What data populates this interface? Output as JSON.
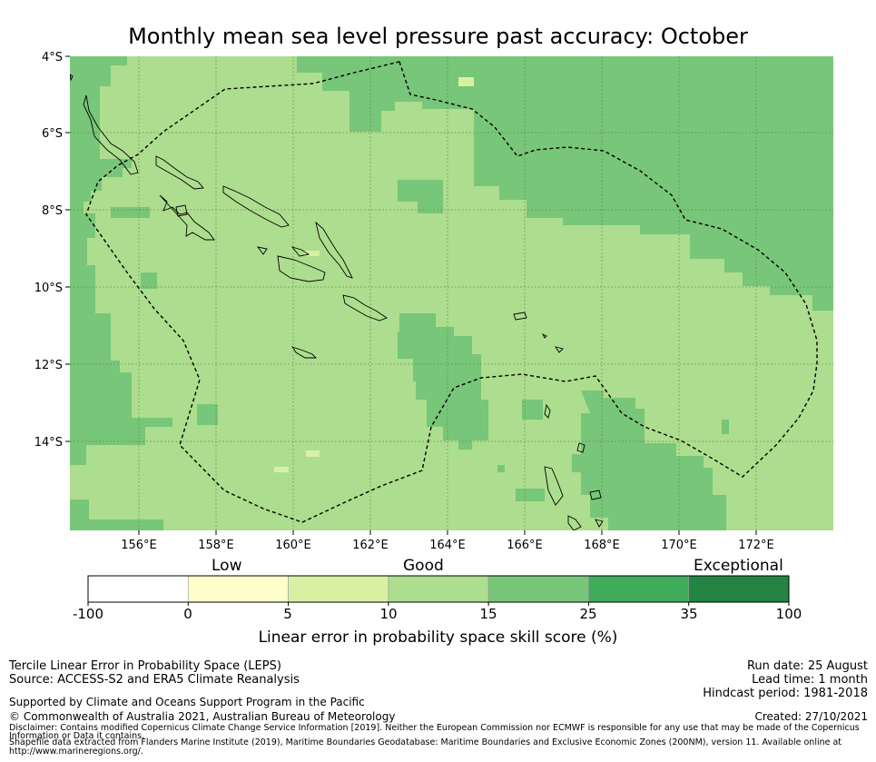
{
  "title": "Monthly mean sea level pressure past accuracy: October",
  "map": {
    "lat_ticks": [
      "4°S",
      "6°S",
      "8°S",
      "10°S",
      "12°S",
      "14°S"
    ],
    "lon_ticks": [
      "156°E",
      "158°E",
      "160°E",
      "162°E",
      "164°E",
      "166°E",
      "168°E",
      "170°E",
      "172°E"
    ],
    "extent": {
      "lon_min": 154.2,
      "lon_max": 174.0,
      "lat_min": -16.3,
      "lat_max": -4.0
    }
  },
  "colorbar": {
    "categories": [
      "Low",
      "Good",
      "Exceptional"
    ],
    "labels": [
      "-100",
      "0",
      "5",
      "10",
      "15",
      "25",
      "35",
      "100"
    ],
    "colors": [
      "#ffffff",
      "#ffffcc",
      "#d9f0a3",
      "#addd8e",
      "#78c679",
      "#41ab5d",
      "#238443"
    ],
    "title": "Linear error in probability space skill score (%)"
  },
  "footer": {
    "left_line1": "Tercile Linear Error in Probability Space (LEPS)",
    "left_line2": "Source: ACCESS-S2 and ERA5 Climate Reanalysis",
    "support": "Supported by Climate and Oceans Support Program in the Pacific",
    "copyright": "© Commonwealth of Australia 2021, Australian Bureau of Meteorology",
    "disclaimer1": "Disclaimer: Contains modified Copernicus Climate Change Service Information [2019]. Neither the European Commission nor ECMWF is responsible for any use that may be made of the Copernicus",
    "disclaimer2": "Information or Data it contains.",
    "disclaimer3": "Shapefile data extracted from Flanders Marine Institute (2019), Maritime Boundaries Geodatabase: Maritime Boundaries and Exclusive Economic Zones (200NM), version 11. Available online at",
    "disclaimer4": "http://www.marineregions.org/.",
    "run_date": "Run date: 25 August",
    "lead_time": "Lead time: 1 month",
    "hindcast": "Hindcast period: 1981-2018",
    "created": "Created: 27/10/2021"
  }
}
